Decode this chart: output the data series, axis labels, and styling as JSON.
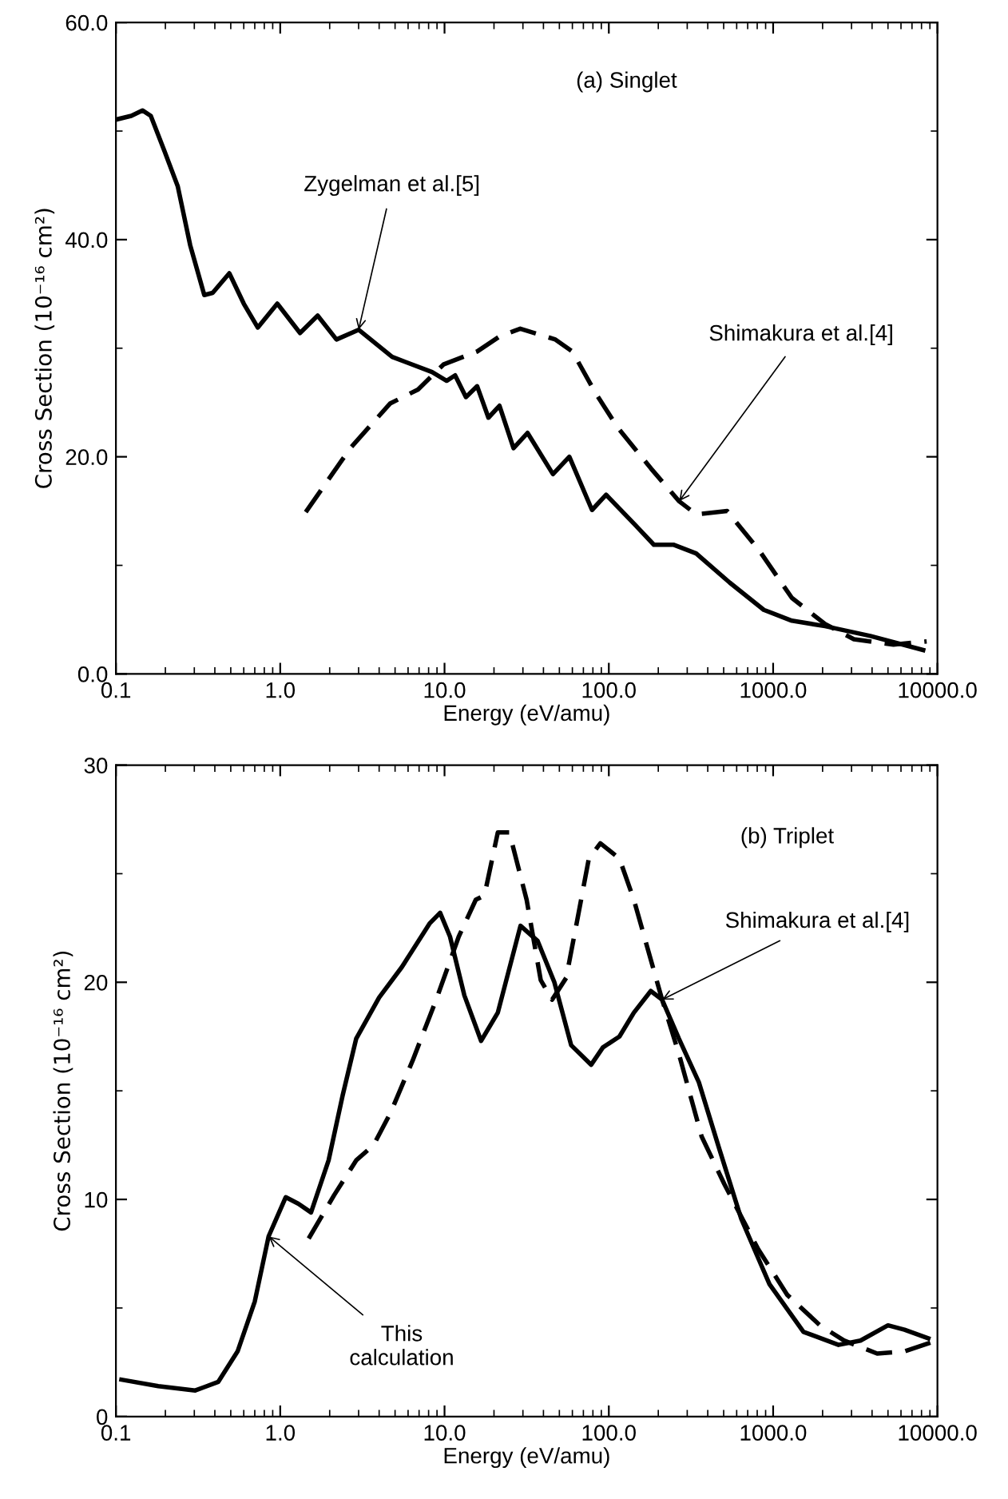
{
  "chart_data": [
    {
      "type": "line",
      "xlabel": "Energy (eV/amu)",
      "ylabel": "Cross Section (10⁻¹⁶ cm²)",
      "log": "x",
      "grid": false,
      "legend": false,
      "xlim": [
        0.1,
        10000
      ],
      "xticks": [
        {
          "value": 0.1,
          "label": "0.1"
        },
        {
          "value": 1,
          "label": "1.0"
        },
        {
          "value": 10,
          "label": "10.0"
        },
        {
          "value": 100,
          "label": "100.0"
        },
        {
          "value": 1000,
          "label": "1000.0"
        },
        {
          "value": 10000,
          "label": "10000.0"
        }
      ],
      "ylim": [
        0,
        60
      ],
      "yticks": [
        {
          "value": 0,
          "label": "0.0"
        },
        {
          "value": 20,
          "label": "20.0"
        },
        {
          "value": 40,
          "label": "40.0"
        },
        {
          "value": 60,
          "label": "60.0"
        }
      ],
      "annotations": [
        "(a) Singlet",
        {
          "text": "Zygelman et al.[5]",
          "x": 3.0,
          "y": 31.7
        },
        {
          "text": "Shimakura et al.[4]",
          "x": 268,
          "y": 15.9
        }
      ],
      "series": [
        {
          "color": "#000000",
          "line_style": "solid",
          "x": [
            0.103,
            0.124,
            0.145,
            0.163,
            0.198,
            0.238,
            0.283,
            0.345,
            0.388,
            0.49,
            0.6,
            0.73,
            0.96,
            1.32,
            1.69,
            2.2,
            3.0,
            4.8,
            8.4,
            10.3,
            11.6,
            13.5,
            15.8,
            18.5,
            21.6,
            26.3,
            32,
            45.7,
            57.5,
            79,
            96.3,
            143,
            188,
            247,
            340,
            545,
            877,
            1300,
            2070,
            3900,
            8190
          ],
          "values": [
            51.1,
            51.4,
            51.9,
            51.4,
            48.1,
            44.9,
            39.5,
            34.9,
            35.1,
            36.9,
            34.1,
            31.9,
            34.1,
            31.4,
            33.0,
            30.8,
            31.7,
            29.2,
            27.8,
            27.0,
            27.5,
            25.5,
            26.5,
            23.6,
            24.7,
            20.8,
            22.2,
            18.4,
            20.0,
            15.1,
            16.5,
            13.8,
            11.9,
            11.9,
            11.1,
            8.4,
            5.9,
            4.9,
            4.4,
            3.5,
            2.2
          ]
        },
        {
          "color": "#000000",
          "line_style": "dashed",
          "x": [
            1.43,
            2.67,
            4.66,
            6.9,
            9.85,
            15.8,
            21.7,
            28.9,
            47.3,
            60,
            82.8,
            113,
            181,
            268,
            340,
            525,
            820,
            1300,
            2070,
            3100,
            5400,
            8600
          ],
          "values": [
            14.9,
            20.8,
            24.9,
            26.2,
            28.5,
            29.7,
            31.1,
            31.8,
            30.8,
            29.7,
            25.9,
            22.7,
            18.9,
            15.9,
            14.7,
            15.0,
            11.4,
            7.0,
            4.6,
            3.2,
            2.7,
            3.0
          ]
        }
      ]
    },
    {
      "type": "line",
      "xlabel": "Energy (eV/amu)",
      "ylabel": "Cross Section (10⁻¹⁶ cm²)",
      "log": "x",
      "grid": false,
      "legend": false,
      "xlim": [
        0.1,
        10000
      ],
      "xticks": [
        {
          "value": 0.1,
          "label": "0.1"
        },
        {
          "value": 1,
          "label": "1.0"
        },
        {
          "value": 10,
          "label": "10.0"
        },
        {
          "value": 100,
          "label": "100.0"
        },
        {
          "value": 1000,
          "label": "1000.0"
        },
        {
          "value": 10000,
          "label": "10000.0"
        }
      ],
      "ylim": [
        0,
        30
      ],
      "yticks": [
        0,
        10,
        20,
        30
      ],
      "annotations": [
        "(b) Triplet",
        {
          "text": "Shimakura et al.[4]",
          "x": 211,
          "y": 19.2
        },
        {
          "text": "This\ncalculation",
          "x": 0.85,
          "y": 8.3
        }
      ],
      "series": [
        {
          "color": "#000000",
          "line_style": "solid",
          "x": [
            0.108,
            0.181,
            0.304,
            0.42,
            0.55,
            0.7,
            0.85,
            1.08,
            1.29,
            1.54,
            1.97,
            2.4,
            2.9,
            4.0,
            5.5,
            8.1,
            9.4,
            10.8,
            13.2,
            16.7,
            21.1,
            29.0,
            36.9,
            46.6,
            59,
            78,
            92,
            116,
            142,
            180,
            211,
            267,
            353,
            467,
            640,
            950,
            1530,
            2500,
            3400,
            5000,
            6300,
            8800
          ],
          "values": [
            1.7,
            1.4,
            1.2,
            1.6,
            3.0,
            5.3,
            8.3,
            10.1,
            9.8,
            9.4,
            11.8,
            14.8,
            17.4,
            19.3,
            20.7,
            22.7,
            23.2,
            22.1,
            19.4,
            17.3,
            18.6,
            22.6,
            21.9,
            20.0,
            17.1,
            16.2,
            17.0,
            17.5,
            18.6,
            19.6,
            19.2,
            17.4,
            15.4,
            12.4,
            9.1,
            6.1,
            3.9,
            3.3,
            3.5,
            4.2,
            4.0,
            3.6
          ]
        },
        {
          "color": "#000000",
          "line_style": "dashed",
          "x": [
            1.49,
            2.13,
            2.9,
            3.7,
            4.7,
            6.4,
            8.9,
            12.2,
            15.5,
            17.5,
            21.1,
            24.8,
            31.6,
            38.5,
            45.2,
            55.0,
            64.0,
            75.6,
            88.8,
            116,
            142,
            211,
            267,
            367,
            505,
            812,
            1220,
            1930,
            2700,
            4300,
            6300,
            9050
          ],
          "values": [
            8.2,
            10.2,
            11.8,
            12.5,
            14.0,
            16.4,
            19.2,
            22.1,
            23.8,
            24.0,
            26.9,
            26.9,
            23.8,
            20.1,
            19.2,
            20.2,
            22.8,
            25.7,
            26.4,
            25.7,
            23.8,
            19.2,
            16.7,
            12.9,
            10.7,
            7.7,
            5.6,
            4.2,
            3.5,
            2.9,
            3.0,
            3.4
          ]
        }
      ]
    }
  ]
}
